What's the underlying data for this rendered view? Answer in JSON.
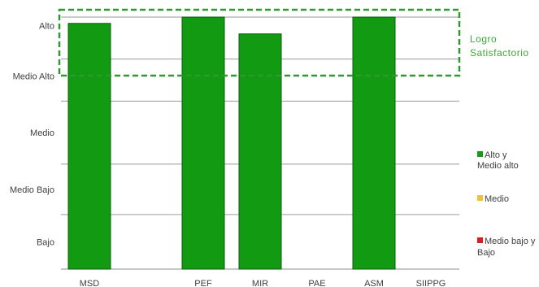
{
  "chart_data": {
    "type": "bar",
    "categories": [
      "MSD",
      "",
      "PEF",
      "MIR",
      "PAE",
      "ASM",
      "SIIPPG"
    ],
    "values": [
      5.85,
      null,
      6.0,
      5.6,
      null,
      6.0,
      null
    ],
    "y_levels": [
      "Bajo",
      "Medio Bajo",
      "Medio",
      "Medio  Alto",
      "Alto"
    ],
    "ylim": [
      0,
      6
    ],
    "grid": true,
    "bar_color": "#129a12",
    "annotation": {
      "text_line1": "Logro",
      "text_line2": "Satisfactorio",
      "color": "#3aa935"
    },
    "legend": [
      {
        "label_line1": "Alto y",
        "label_line2": "Medio alto",
        "color": "#1a9a1a"
      },
      {
        "label_line1": "Medio",
        "label_line2": "",
        "color": "#f2c230"
      },
      {
        "label_line1": "Medio bajo y",
        "label_line2": "Bajo",
        "color": "#d62020"
      }
    ]
  }
}
